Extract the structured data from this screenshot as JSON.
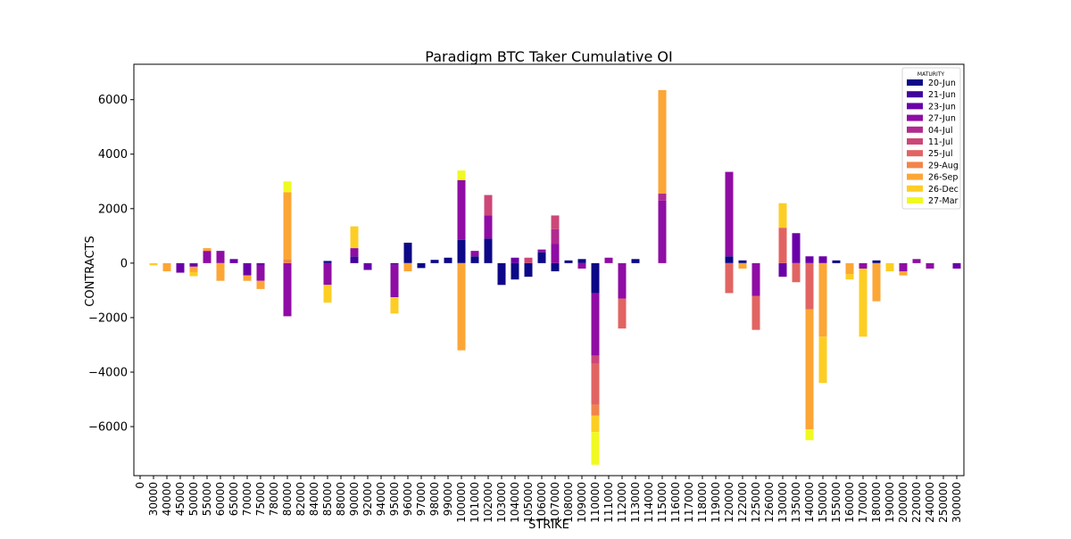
{
  "chart_data": {
    "type": "bar",
    "stacked": true,
    "title": "Paradigm BTC Taker Cumulative OI",
    "xlabel": "STRIKE",
    "ylabel": "CONTRACTS",
    "ylim": [
      -7800,
      7300
    ],
    "yticks": [
      -6000,
      -4000,
      -2000,
      0,
      2000,
      4000,
      6000
    ],
    "ytick_labels": [
      "−6000",
      "−4000",
      "−2000",
      "0",
      "2000",
      "4000",
      "6000"
    ],
    "grid": false,
    "legend": {
      "title": "MATURITY",
      "placement": "top-right"
    },
    "categories": [
      "0",
      "30000",
      "40000",
      "45000",
      "50000",
      "55000",
      "60000",
      "65000",
      "70000",
      "75000",
      "78000",
      "80000",
      "82000",
      "84000",
      "85000",
      "88000",
      "90000",
      "92000",
      "94000",
      "95000",
      "96000",
      "97000",
      "98000",
      "99000",
      "100000",
      "101000",
      "102000",
      "103000",
      "104000",
      "105000",
      "106000",
      "107000",
      "108000",
      "109000",
      "110000",
      "111000",
      "112000",
      "113000",
      "114000",
      "115000",
      "116000",
      "117000",
      "118000",
      "119000",
      "120000",
      "122000",
      "125000",
      "126000",
      "130000",
      "135000",
      "140000",
      "150000",
      "155000",
      "160000",
      "170000",
      "180000",
      "190000",
      "200000",
      "220000",
      "240000",
      "250000",
      "300000"
    ],
    "series": [
      {
        "name": "20-Jun",
        "color": "#0d0887",
        "values": [
          0,
          0,
          0,
          0,
          0,
          0,
          0,
          0,
          0,
          0,
          0,
          0,
          0,
          0,
          80,
          0,
          0,
          0,
          0,
          0,
          750,
          -180,
          120,
          200,
          850,
          250,
          900,
          -800,
          -600,
          -500,
          400,
          -300,
          100,
          150,
          -1100,
          0,
          0,
          150,
          0,
          0,
          0,
          0,
          0,
          0,
          250,
          100,
          0,
          0,
          0,
          0,
          0,
          0,
          100,
          0,
          0,
          100,
          0,
          0,
          0,
          0,
          0,
          0
        ]
      },
      {
        "name": "21-Jun",
        "color": "#41049d",
        "values": [
          0,
          0,
          0,
          0,
          -30,
          0,
          0,
          0,
          0,
          0,
          0,
          0,
          0,
          0,
          0,
          0,
          250,
          0,
          0,
          -50,
          0,
          0,
          0,
          0,
          0,
          0,
          0,
          0,
          0,
          0,
          0,
          0,
          0,
          0,
          0,
          0,
          0,
          0,
          0,
          0,
          0,
          0,
          0,
          0,
          0,
          0,
          0,
          0,
          0,
          0,
          0,
          0,
          0,
          0,
          0,
          0,
          0,
          0,
          0,
          0,
          0,
          0
        ]
      },
      {
        "name": "23-Jun",
        "color": "#6a00a8",
        "values": [
          0,
          0,
          0,
          -350,
          -100,
          0,
          0,
          150,
          -450,
          -100,
          0,
          0,
          0,
          0,
          0,
          0,
          0,
          -250,
          0,
          0,
          0,
          0,
          0,
          0,
          0,
          0,
          0,
          0,
          200,
          0,
          0,
          0,
          0,
          0,
          0,
          0,
          0,
          0,
          0,
          0,
          0,
          0,
          0,
          0,
          0,
          0,
          0,
          0,
          -500,
          1100,
          250,
          250,
          0,
          0,
          0,
          0,
          0,
          0,
          0,
          0,
          0,
          -200
        ]
      },
      {
        "name": "27-Jun",
        "color": "#8f0da4",
        "values": [
          0,
          0,
          0,
          0,
          0,
          450,
          450,
          0,
          0,
          -550,
          0,
          -1950,
          0,
          0,
          -800,
          0,
          300,
          0,
          0,
          -1200,
          0,
          0,
          0,
          0,
          2200,
          200,
          850,
          0,
          0,
          0,
          100,
          700,
          0,
          -200,
          -2300,
          200,
          -1300,
          0,
          0,
          2300,
          0,
          0,
          0,
          0,
          3100,
          0,
          -1200,
          0,
          0,
          0,
          0,
          0,
          0,
          0,
          -200,
          0,
          0,
          -300,
          150,
          -200,
          0,
          0
        ]
      },
      {
        "name": "04-Jul",
        "color": "#b12a90",
        "values": [
          0,
          0,
          0,
          0,
          0,
          0,
          0,
          0,
          0,
          0,
          0,
          0,
          0,
          0,
          0,
          0,
          0,
          0,
          0,
          0,
          0,
          0,
          0,
          0,
          0,
          0,
          0,
          0,
          0,
          0,
          0,
          550,
          0,
          0,
          0,
          0,
          0,
          0,
          0,
          250,
          0,
          0,
          0,
          0,
          0,
          0,
          0,
          0,
          0,
          0,
          0,
          0,
          0,
          0,
          0,
          0,
          0,
          0,
          0,
          0,
          0,
          0
        ]
      },
      {
        "name": "11-Jul",
        "color": "#cc4778",
        "values": [
          0,
          0,
          0,
          0,
          0,
          0,
          0,
          0,
          0,
          0,
          0,
          0,
          0,
          0,
          0,
          0,
          0,
          0,
          0,
          0,
          0,
          0,
          0,
          0,
          0,
          0,
          750,
          0,
          0,
          200,
          0,
          500,
          0,
          0,
          -300,
          0,
          0,
          0,
          0,
          0,
          0,
          0,
          0,
          0,
          0,
          0,
          0,
          0,
          0,
          0,
          0,
          0,
          0,
          0,
          0,
          0,
          0,
          0,
          0,
          0,
          0,
          0
        ]
      },
      {
        "name": "25-Jul",
        "color": "#e16462",
        "values": [
          0,
          0,
          0,
          0,
          0,
          0,
          0,
          0,
          0,
          0,
          0,
          0,
          0,
          0,
          0,
          0,
          0,
          0,
          0,
          0,
          0,
          0,
          0,
          0,
          0,
          0,
          0,
          0,
          0,
          0,
          0,
          0,
          0,
          0,
          -1500,
          0,
          -1100,
          0,
          0,
          0,
          0,
          0,
          0,
          0,
          -1100,
          0,
          -1250,
          0,
          1300,
          -700,
          -1700,
          0,
          0,
          0,
          0,
          0,
          0,
          0,
          0,
          0,
          0,
          0
        ]
      },
      {
        "name": "29-Aug",
        "color": "#f2844b",
        "values": [
          0,
          0,
          0,
          0,
          0,
          0,
          0,
          0,
          0,
          0,
          0,
          150,
          0,
          0,
          0,
          0,
          0,
          0,
          0,
          0,
          0,
          0,
          0,
          0,
          0,
          0,
          0,
          0,
          0,
          0,
          0,
          0,
          0,
          0,
          -400,
          0,
          0,
          0,
          0,
          0,
          0,
          0,
          0,
          0,
          0,
          0,
          0,
          0,
          0,
          0,
          0,
          0,
          0,
          0,
          0,
          0,
          0,
          0,
          0,
          0,
          0,
          0
        ]
      },
      {
        "name": "26-Sep",
        "color": "#fca636",
        "values": [
          0,
          0,
          -300,
          0,
          -200,
          100,
          -650,
          0,
          -200,
          -300,
          0,
          2450,
          0,
          0,
          0,
          0,
          0,
          0,
          0,
          0,
          -300,
          0,
          0,
          0,
          -3200,
          0,
          0,
          0,
          0,
          0,
          0,
          0,
          0,
          0,
          0,
          0,
          0,
          0,
          0,
          3800,
          0,
          0,
          0,
          0,
          0,
          -200,
          0,
          0,
          0,
          0,
          -4400,
          -2700,
          0,
          -400,
          0,
          -1400,
          0,
          -150,
          0,
          0,
          0,
          0
        ]
      },
      {
        "name": "26-Dec",
        "color": "#fcce25",
        "values": [
          0,
          -80,
          0,
          0,
          -150,
          0,
          0,
          0,
          0,
          0,
          0,
          0,
          0,
          0,
          -650,
          0,
          800,
          0,
          0,
          -600,
          0,
          0,
          0,
          0,
          0,
          0,
          0,
          0,
          0,
          0,
          0,
          0,
          0,
          0,
          -600,
          0,
          0,
          0,
          0,
          0,
          0,
          0,
          0,
          0,
          0,
          0,
          0,
          0,
          900,
          0,
          0,
          -1700,
          0,
          -200,
          -2500,
          0,
          -300,
          0,
          0,
          0,
          0,
          0
        ]
      },
      {
        "name": "27-Mar",
        "color": "#f0f921",
        "values": [
          0,
          0,
          0,
          0,
          0,
          0,
          0,
          0,
          0,
          0,
          0,
          400,
          0,
          0,
          0,
          0,
          0,
          0,
          0,
          0,
          0,
          0,
          0,
          0,
          350,
          0,
          0,
          0,
          0,
          0,
          0,
          0,
          0,
          0,
          -1200,
          0,
          0,
          0,
          0,
          0,
          0,
          0,
          0,
          0,
          0,
          0,
          0,
          0,
          0,
          0,
          -400,
          0,
          0,
          0,
          0,
          0,
          0,
          0,
          0,
          0,
          0,
          0
        ]
      }
    ]
  }
}
